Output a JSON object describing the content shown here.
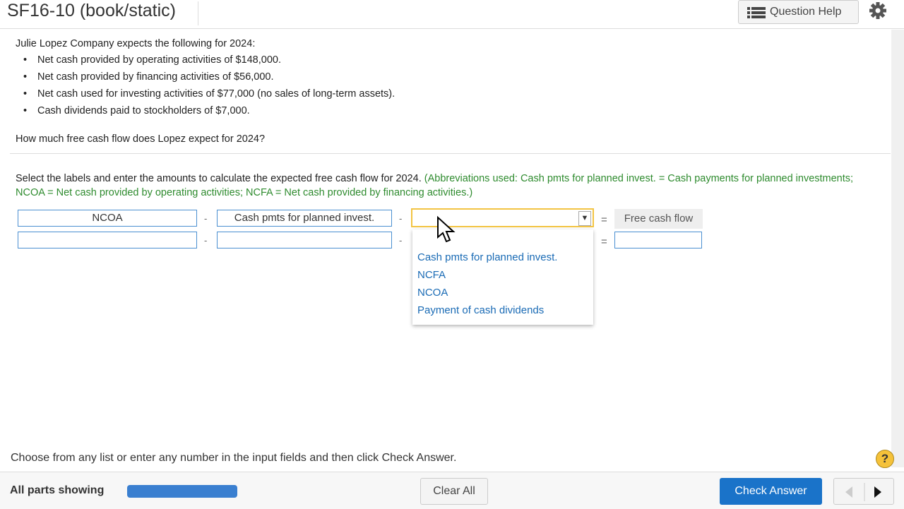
{
  "header": {
    "title": "SF16-10 (book/static)",
    "help": "Question Help"
  },
  "problem": {
    "intro": "Julie Lopez Company expects the following for 2024:",
    "bullets": [
      "Net cash provided by operating activities of $148,000.",
      "Net cash provided by financing activities of $56,000.",
      "Net cash used for investing activities of $77,000 (no sales of long-term assets).",
      "Cash dividends paid to stockholders of $7,000."
    ],
    "question": "How much free cash flow does Lopez expect for 2024?"
  },
  "instructions": {
    "text": "Select the labels and enter the amounts to calculate the expected free cash flow for 2024.",
    "note": "(Abbreviations used: Cash pmts for planned invest. = Cash payments for planned investments; NCOA = Net cash provided by operating activities; NCFA = Net cash provided by financing activities.)"
  },
  "equation": {
    "labels": [
      "NCOA",
      "Cash pmts for planned invest."
    ],
    "operators": [
      "-",
      "-",
      "="
    ],
    "result": "Free cash flow"
  },
  "dropdown": {
    "options": [
      "Cash pmts for planned invest.",
      "NCFA",
      "NCOA",
      "Payment of cash dividends"
    ]
  },
  "footer": {
    "hint": "Choose from any list or enter any number in the input fields and then click Check Answer.",
    "help_icon": "?",
    "status": "All parts showing",
    "clear": "Clear All",
    "check": "Check Answer"
  }
}
